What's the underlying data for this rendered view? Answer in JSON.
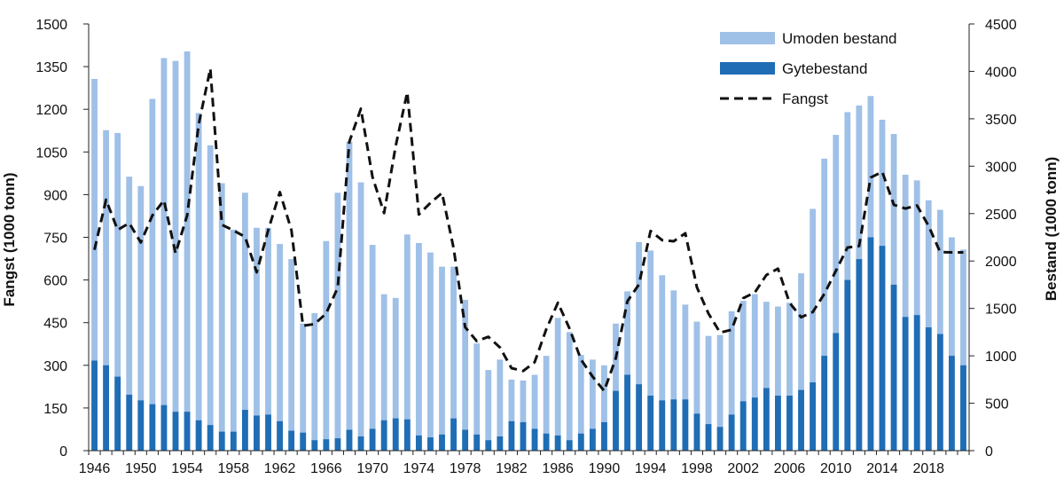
{
  "chart_data": {
    "type": "bar",
    "years": [
      1946,
      1947,
      1948,
      1949,
      1950,
      1951,
      1952,
      1953,
      1954,
      1955,
      1956,
      1957,
      1958,
      1959,
      1960,
      1961,
      1962,
      1963,
      1964,
      1965,
      1966,
      1967,
      1968,
      1969,
      1970,
      1971,
      1972,
      1973,
      1974,
      1975,
      1976,
      1977,
      1978,
      1979,
      1980,
      1981,
      1982,
      1983,
      1984,
      1985,
      1986,
      1987,
      1988,
      1989,
      1990,
      1991,
      1992,
      1993,
      1994,
      1995,
      1996,
      1997,
      1998,
      1999,
      2000,
      2001,
      2002,
      2003,
      2004,
      2005,
      2006,
      2007,
      2008,
      2009,
      2010,
      2011,
      2012,
      2013,
      2014,
      2015,
      2016,
      2017,
      2018,
      2019,
      2020,
      2021
    ],
    "x_tick_labels": [
      "1946",
      "1950",
      "1954",
      "1958",
      "1962",
      "1966",
      "1970",
      "1974",
      "1978",
      "1982",
      "1986",
      "1990",
      "1994",
      "1998",
      "2002",
      "2006",
      "2010",
      "2014",
      "2018"
    ],
    "y_left": {
      "label": "Fangst (1000 tonn)",
      "min": 0,
      "max": 1500,
      "ticks": [
        "0",
        "150",
        "300",
        "450",
        "600",
        "750",
        "900",
        "1050",
        "1200",
        "1350",
        "1500"
      ]
    },
    "y_right": {
      "label": "Bestand (1000 tonn)",
      "min": 0,
      "max": 4500,
      "ticks": [
        "0",
        "500",
        "1000",
        "1500",
        "2000",
        "2500",
        "3000",
        "3500",
        "4000",
        "4500"
      ]
    },
    "legend_position": "top-right",
    "series": [
      {
        "name": "Umoden bestand",
        "kind": "bar",
        "axis": "right",
        "color": "#9fc0e7",
        "values": [
          3920,
          3380,
          3350,
          2890,
          2790,
          3710,
          4140,
          4110,
          4210,
          3560,
          3220,
          2820,
          2330,
          2720,
          2350,
          2350,
          2180,
          2020,
          1340,
          1450,
          2210,
          2720,
          3260,
          2830,
          2170,
          1650,
          1610,
          2280,
          2190,
          2090,
          1940,
          1940,
          1590,
          1130,
          850,
          960,
          750,
          740,
          800,
          1000,
          1400,
          1250,
          1010,
          960,
          900,
          1340,
          1680,
          2200,
          2110,
          1850,
          1690,
          1540,
          1360,
          1210,
          1220,
          1470,
          1580,
          1650,
          1570,
          1520,
          1560,
          1870,
          2550,
          3080,
          3330,
          3570,
          3640,
          3740,
          3490,
          3340,
          2910,
          2850,
          2640,
          2540,
          2250,
          2120
        ]
      },
      {
        "name": "Gytebestand",
        "kind": "bar",
        "axis": "right",
        "color": "#1f6db5",
        "values": [
          950,
          900,
          780,
          590,
          530,
          490,
          480,
          410,
          410,
          320,
          270,
          200,
          200,
          430,
          370,
          380,
          310,
          210,
          190,
          110,
          120,
          130,
          220,
          150,
          230,
          320,
          340,
          330,
          160,
          140,
          170,
          340,
          220,
          170,
          110,
          150,
          310,
          300,
          230,
          180,
          160,
          110,
          180,
          230,
          300,
          630,
          800,
          700,
          580,
          530,
          540,
          540,
          390,
          280,
          250,
          380,
          520,
          560,
          660,
          580,
          580,
          640,
          720,
          1000,
          1240,
          1800,
          2020,
          2250,
          2160,
          1750,
          1410,
          1430,
          1300,
          1230,
          1000,
          900
        ]
      },
      {
        "name": "Fangst",
        "kind": "line",
        "axis": "left",
        "style": "dashed",
        "color": "#111111",
        "values": [
          706,
          882,
          776,
          800,
          732,
          827,
          880,
          694,
          827,
          1147,
          1343,
          794,
          774,
          752,
          627,
          775,
          909,
          775,
          439,
          445,
          482,
          573,
          1086,
          1202,
          962,
          835,
          1070,
          1260,
          830,
          871,
          906,
          712,
          434,
          385,
          400,
          363,
          290,
          280,
          311,
          427,
          520,
          430,
          320,
          260,
          210,
          325,
          525,
          584,
          772,
          740,
          736,
          764,
          574,
          482,
          415,
          425,
          536,
          556,
          617,
          640,
          520,
          469,
          487,
          551,
          632,
          714,
          719,
          960,
          980,
          864,
          851,
          862,
          790,
          698,
          697,
          697
        ]
      }
    ]
  }
}
